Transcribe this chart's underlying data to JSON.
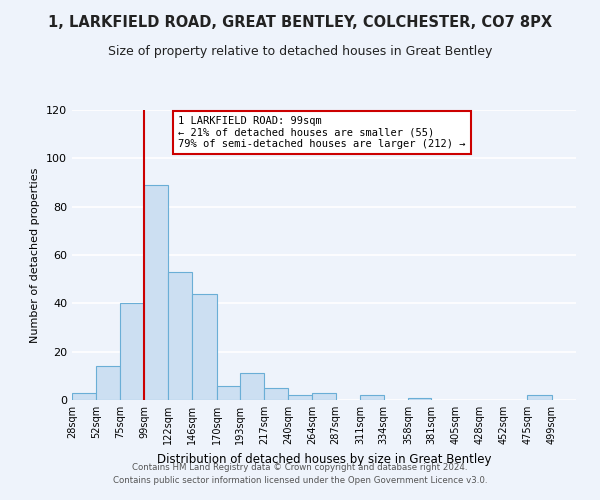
{
  "title1": "1, LARKFIELD ROAD, GREAT BENTLEY, COLCHESTER, CO7 8PX",
  "title2": "Size of property relative to detached houses in Great Bentley",
  "xlabel": "Distribution of detached houses by size in Great Bentley",
  "ylabel": "Number of detached properties",
  "bin_labels": [
    "28sqm",
    "52sqm",
    "75sqm",
    "99sqm",
    "122sqm",
    "146sqm",
    "170sqm",
    "193sqm",
    "217sqm",
    "240sqm",
    "264sqm",
    "287sqm",
    "311sqm",
    "334sqm",
    "358sqm",
    "381sqm",
    "405sqm",
    "428sqm",
    "452sqm",
    "475sqm",
    "499sqm"
  ],
  "bin_edges": [
    28,
    52,
    75,
    99,
    122,
    146,
    170,
    193,
    217,
    240,
    264,
    287,
    311,
    334,
    358,
    381,
    405,
    428,
    452,
    475,
    499
  ],
  "bar_heights": [
    3,
    14,
    40,
    89,
    53,
    44,
    6,
    11,
    5,
    2,
    3,
    0,
    2,
    0,
    1,
    0,
    0,
    0,
    0,
    2,
    0
  ],
  "bar_color": "#ccdff2",
  "bar_edge_color": "#6aaed6",
  "vline_x": 99,
  "vline_color": "#cc0000",
  "annotation_title": "1 LARKFIELD ROAD: 99sqm",
  "annotation_line1": "← 21% of detached houses are smaller (55)",
  "annotation_line2": "79% of semi-detached houses are larger (212) →",
  "annotation_box_color": "#ffffff",
  "annotation_box_edge": "#cc0000",
  "ylim": [
    0,
    120
  ],
  "yticks": [
    0,
    20,
    40,
    60,
    80,
    100,
    120
  ],
  "footer1": "Contains HM Land Registry data © Crown copyright and database right 2024.",
  "footer2": "Contains public sector information licensed under the Open Government Licence v3.0.",
  "bg_color": "#eef3fb",
  "grid_color": "#ffffff",
  "title1_fontsize": 10.5,
  "title2_fontsize": 9
}
